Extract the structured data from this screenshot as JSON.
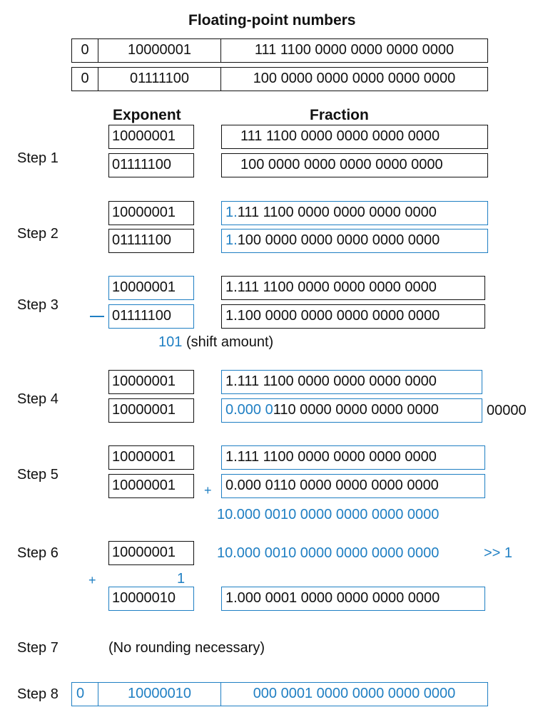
{
  "title": "Floating-point numbers",
  "operands": [
    {
      "sign": "0",
      "exponent": "10000001",
      "fraction": "111 1100 0000 0000 0000 0000"
    },
    {
      "sign": "0",
      "exponent": "01111100",
      "fraction": "100 0000 0000 0000 0000 0000"
    }
  ],
  "headers": {
    "exponent": "Exponent",
    "fraction": "Fraction"
  },
  "steps": {
    "s1": {
      "label": "Step 1",
      "exp_a": "10000001",
      "frac_a": "111 1100 0000 0000 0000 0000",
      "exp_b": "01111100",
      "frac_b": "100 0000 0000 0000 0000 0000"
    },
    "s2": {
      "label": "Step 2",
      "exp_a": "10000001",
      "lead_a": "1.",
      "frac_a": "111 1100 0000 0000 0000 0000",
      "exp_b": "01111100",
      "lead_b": "1.",
      "frac_b": "100 0000 0000 0000 0000 0000"
    },
    "s3": {
      "label": "Step 3",
      "exp_a": "10000001",
      "frac_a": "1.111 1100 0000 0000 0000 0000",
      "exp_b": "01111100",
      "frac_b": "1.100 0000 0000 0000 0000 0000",
      "shift_value": "101",
      "shift_note": "(shift amount)"
    },
    "s4": {
      "label": "Step 4",
      "exp_a": "10000001",
      "frac_a": "1.111 1100 0000 0000 0000 0000",
      "exp_b": "10000001",
      "shifted_prefix": "0.000 0",
      "frac_b_rest": "110 0000 0000 0000 0000",
      "overflow": "00000"
    },
    "s5": {
      "label": "Step 5",
      "exp_a": "10000001",
      "frac_a": "1.111 1100 0000 0000 0000 0000",
      "exp_b": "10000001",
      "plus": "+",
      "frac_b": "0.000 0110 0000 0000 0000 0000",
      "sum": "10.000 0010 0000 0000 0000 0000"
    },
    "s6": {
      "label": "Step 6",
      "exp": "10000001",
      "frac": "10.000 0010 0000 0000 0000 0000",
      "shift_op": ">> 1",
      "plus": "+",
      "one": "1",
      "new_exp": "10000010",
      "new_frac": "1.000 0001 0000 0000 0000 0000"
    },
    "s7": {
      "label": "Step 7",
      "note": "(No rounding necessary)"
    },
    "s8": {
      "label": "Step 8",
      "sign": "0",
      "exponent": "10000010",
      "fraction": "000 0001 0000 0000 0000 0000"
    }
  },
  "colors": {
    "accent": "#1f7fc3",
    "ink": "#111111"
  }
}
